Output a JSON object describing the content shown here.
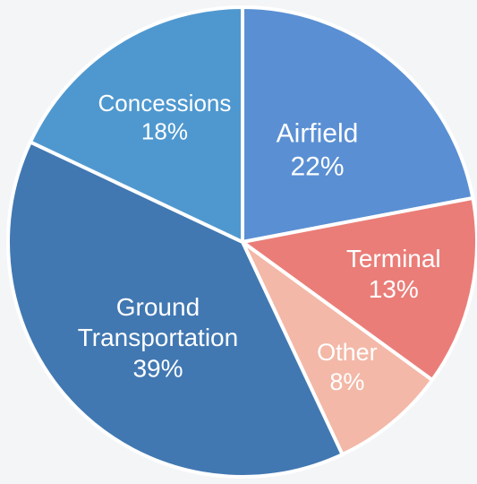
{
  "chart_data": {
    "type": "pie",
    "slices": [
      {
        "label": "Airfield",
        "value": 22,
        "value_label": "22%",
        "color": "#5a8fd3"
      },
      {
        "label": "Terminal",
        "value": 13,
        "value_label": "13%",
        "color": "#ea7d78"
      },
      {
        "label": "Other",
        "value": 8,
        "value_label": "8%",
        "color": "#f3b8a7"
      },
      {
        "label": "Ground Transportation",
        "value": 39,
        "value_label": "39%",
        "color": "#4178b2"
      },
      {
        "label": "Concessions",
        "value": 18,
        "value_label": "18%",
        "color": "#4f98cf"
      }
    ],
    "start_angle": "12 o'clock",
    "direction": "clockwise",
    "legend": "none"
  }
}
